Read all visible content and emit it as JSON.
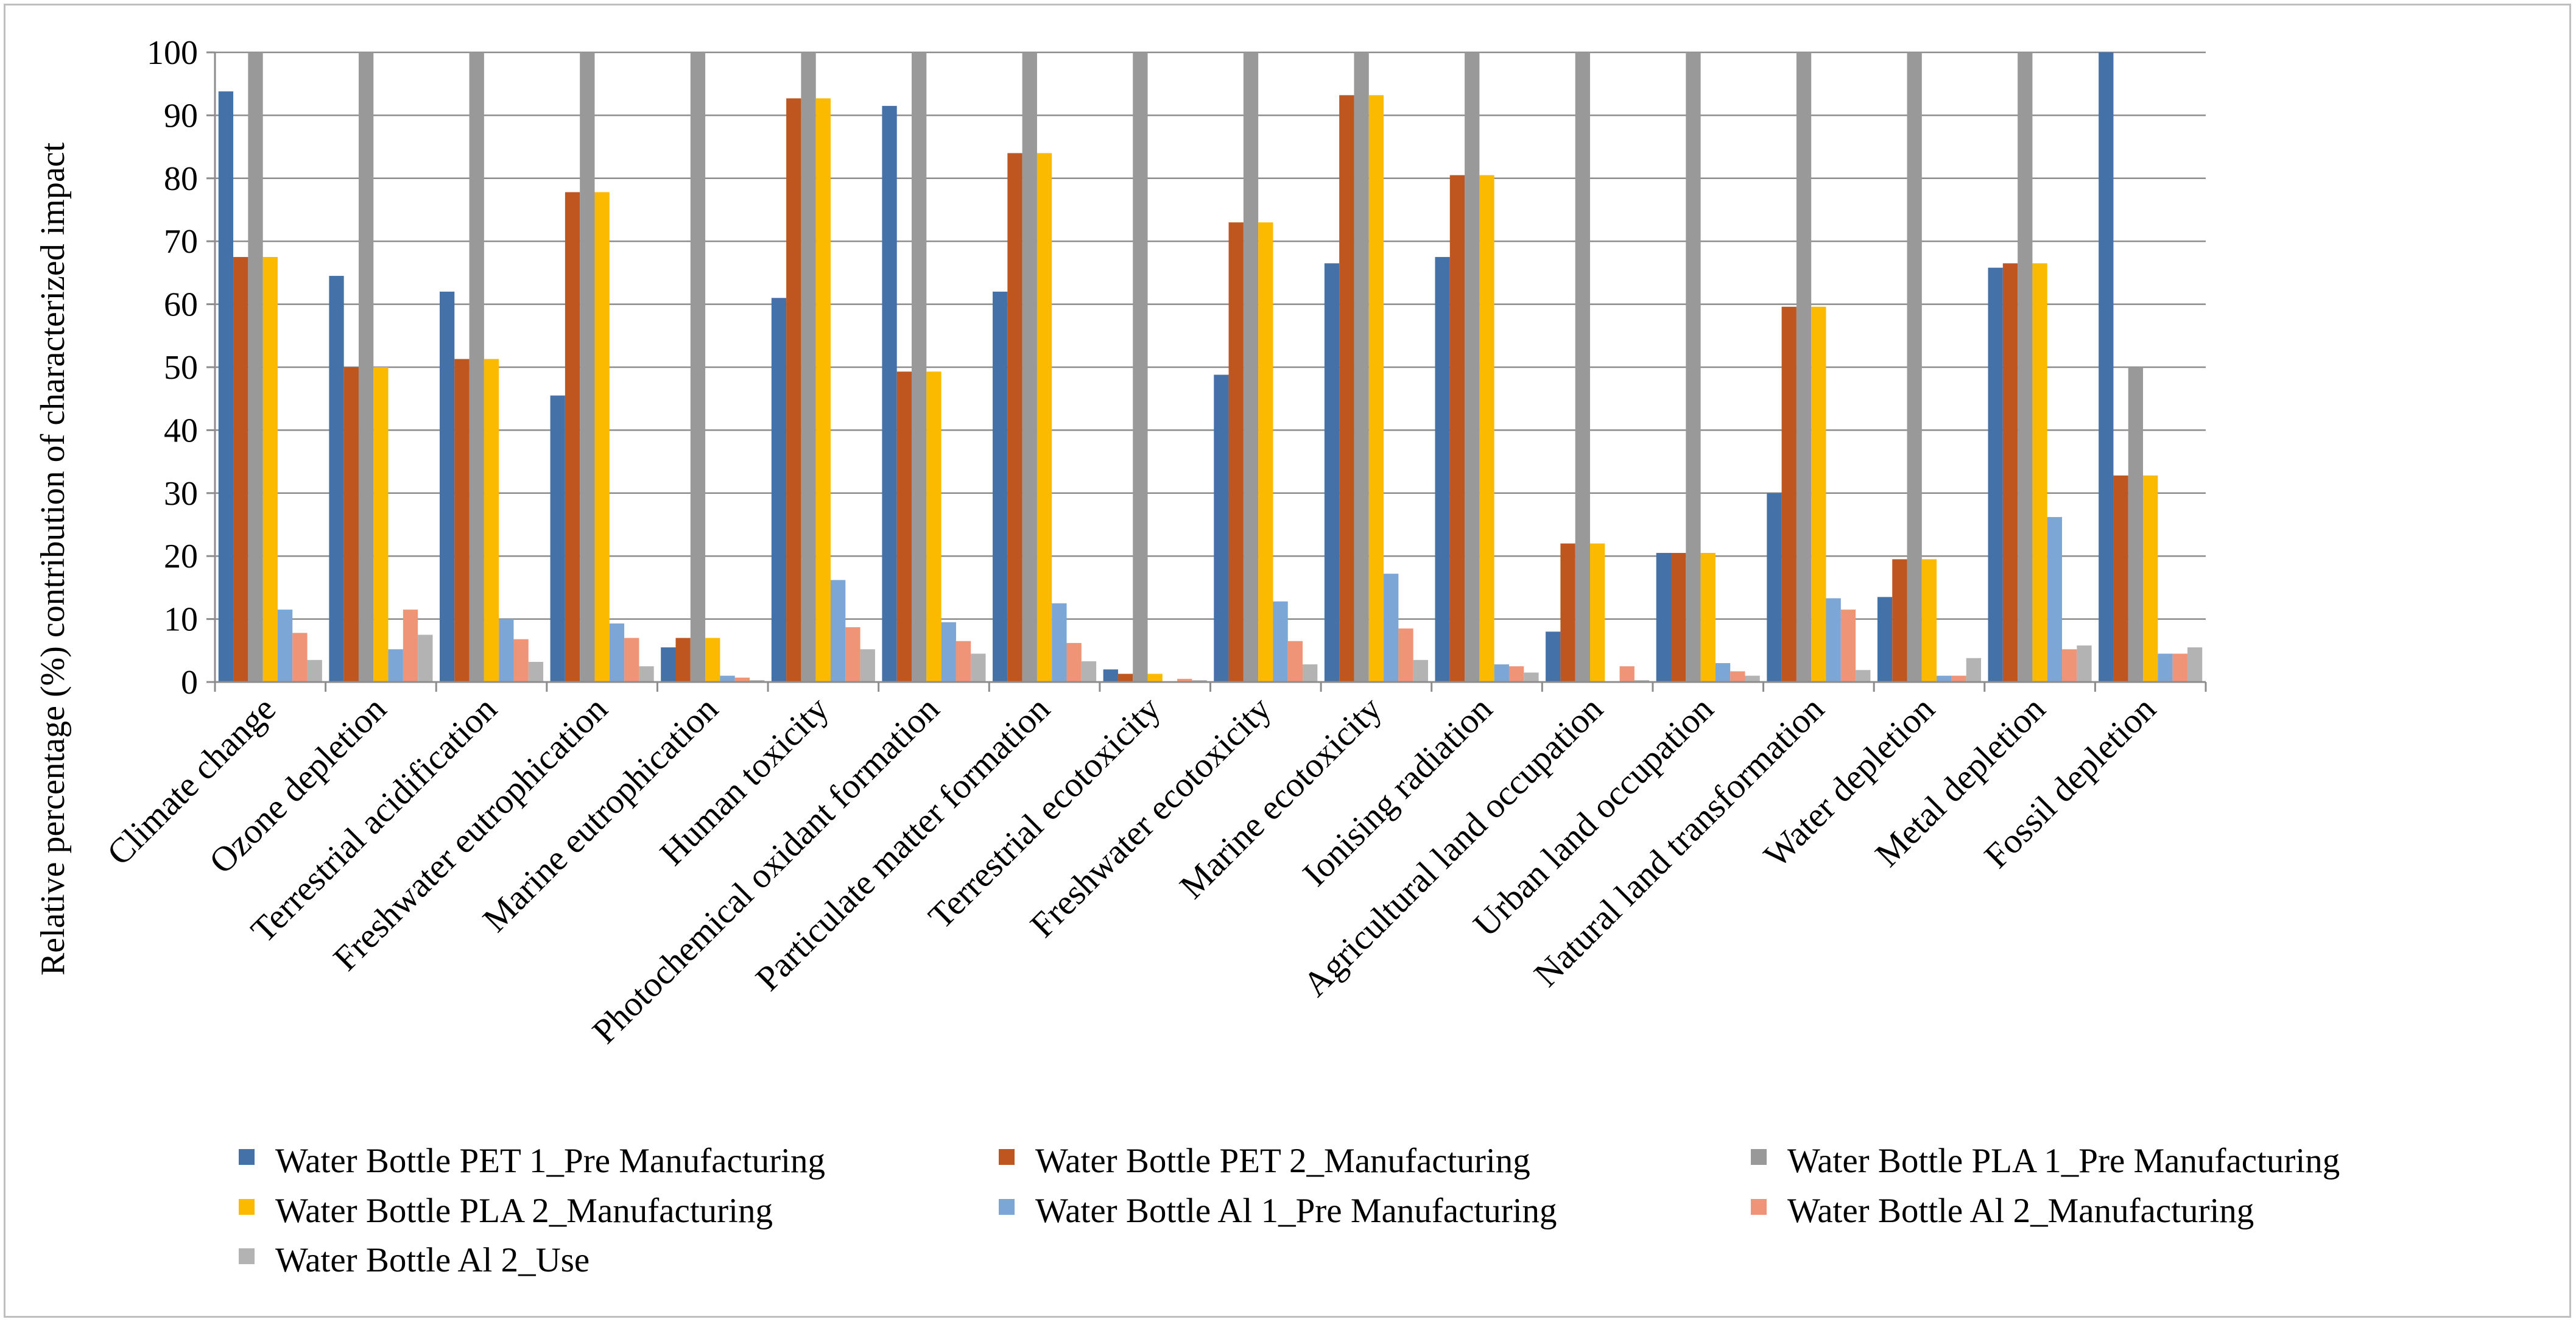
{
  "chart_data": {
    "type": "bar",
    "title": "",
    "xlabel": "",
    "ylabel": "Relative percentage (%) contribution of characterized impact",
    "ylim": [
      0,
      100
    ],
    "yticks": [
      0,
      10,
      20,
      30,
      40,
      50,
      60,
      70,
      80,
      90,
      100
    ],
    "grid": true,
    "legend_position": "bottom",
    "categories": [
      "Climate change",
      "Ozone depletion",
      "Terrestrial acidification",
      "Freshwater eutrophication",
      "Marine eutrophication",
      "Human toxicity",
      "Photochemical oxidant formation",
      "Particulate matter formation",
      "Terrestrial ecotoxicity",
      "Freshwater ecotoxicity",
      "Marine ecotoxicity",
      "Ionising radiation",
      "Agricultural land occupation",
      "Urban land occupation",
      "Natural land transformation",
      "Water depletion",
      "Metal depletion",
      "Fossil depletion"
    ],
    "series": [
      {
        "name": "Water Bottle PET 1_Pre Manufacturing",
        "color": "#4472a8",
        "values": [
          93.8,
          64.5,
          62,
          45.5,
          5.5,
          61,
          91.5,
          62,
          2,
          48.8,
          66.5,
          67.5,
          8,
          20.5,
          30,
          13.5,
          65.8,
          100
        ]
      },
      {
        "name": "Water Bottle PET 2_Manufacturing",
        "color": "#c0561f",
        "values": [
          67.5,
          50,
          51.3,
          77.8,
          7,
          92.7,
          49.3,
          84,
          1.3,
          73,
          93.2,
          80.5,
          22,
          20.5,
          59.6,
          19.5,
          66.5,
          32.8
        ]
      },
      {
        "name": "Water Bottle PLA 1_Pre Manufacturing",
        "color": "#999999",
        "values": [
          100,
          100,
          100,
          100,
          100,
          100,
          100,
          100,
          100,
          100,
          100,
          100,
          100,
          100,
          100,
          100,
          100,
          50
        ]
      },
      {
        "name": "Water Bottle PLA 2_Manufacturing",
        "color": "#fbb900",
        "values": [
          67.5,
          50,
          51.3,
          77.8,
          7,
          92.7,
          49.3,
          84,
          1.3,
          73,
          93.2,
          80.5,
          22,
          20.5,
          59.6,
          19.5,
          66.5,
          32.8
        ]
      },
      {
        "name": "Water Bottle Al 1_Pre Manufacturing",
        "color": "#7ba6d6",
        "values": [
          11.5,
          5.2,
          10,
          9.3,
          1,
          16.2,
          9.5,
          12.5,
          0,
          12.8,
          17.2,
          2.8,
          0,
          3,
          13.3,
          1,
          26.2,
          4.5
        ]
      },
      {
        "name": "Water Bottle Al 2_Manufacturing",
        "color": "#ef9476",
        "values": [
          7.8,
          11.5,
          6.8,
          7,
          0.7,
          8.7,
          6.5,
          6.2,
          0.5,
          6.5,
          8.5,
          2.5,
          2.5,
          1.7,
          11.5,
          1,
          5.2,
          4.5
        ]
      },
      {
        "name": "Water Bottle Al 2_Use",
        "color": "#b3b3b3",
        "values": [
          3.5,
          7.5,
          3.2,
          2.5,
          0.3,
          5.2,
          4.5,
          3.3,
          0.3,
          2.8,
          3.5,
          1.5,
          0.3,
          1,
          1.9,
          3.8,
          5.8,
          5.5
        ]
      }
    ]
  }
}
